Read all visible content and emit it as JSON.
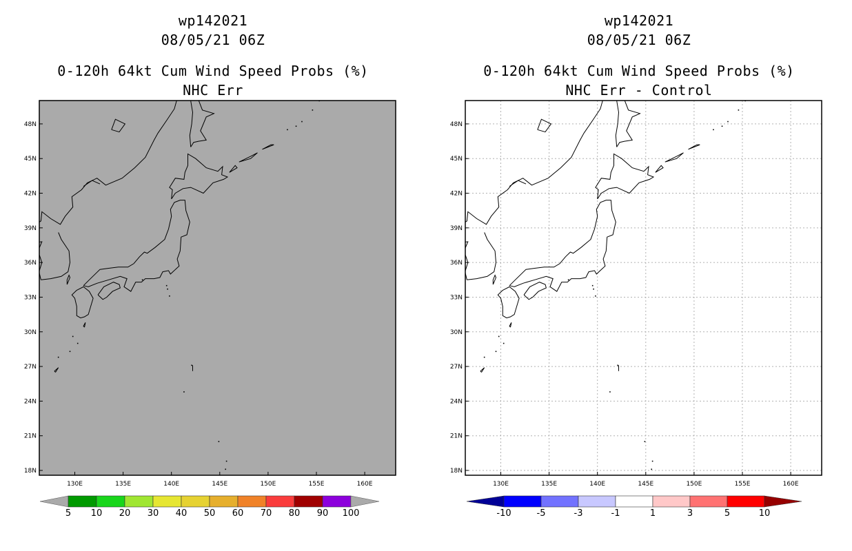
{
  "left_panel": {
    "storm_id": "wp142021",
    "datetime": "08/05/21 06Z",
    "product": "0-120h 64kt Cum Wind Speed Probs (%)",
    "subtitle": "NHC Err",
    "background_color": "#aaaaaa",
    "colorbar": {
      "colors": [
        "#009a00",
        "#19d61b",
        "#a0e632",
        "#e6e632",
        "#e6d232",
        "#e6af2d",
        "#f08228",
        "#fa3c3c",
        "#a00000",
        "#8c00dc"
      ],
      "end_color": "#aaaaaa",
      "labels": [
        "5",
        "10",
        "20",
        "30",
        "40",
        "50",
        "60",
        "70",
        "80",
        "90",
        "100"
      ]
    }
  },
  "right_panel": {
    "storm_id": "wp142021",
    "datetime": "08/05/21 06Z",
    "product": "0-120h 64kt Cum Wind Speed Probs (%)",
    "subtitle": "NHC Err - Control",
    "background_color": "#ffffff",
    "colorbar": {
      "colors": [
        "#0000ff",
        "#7272ff",
        "#c8c8ff",
        "#ffffff",
        "#ffc8c8",
        "#ff7272",
        "#ff0000"
      ],
      "low_end_color": "#000096",
      "high_end_color": "#960000",
      "labels": [
        "-10",
        "-5",
        "-3",
        "-1",
        "1",
        "3",
        "5",
        "10"
      ]
    }
  },
  "map": {
    "lat_labels": [
      "48N",
      "45N",
      "42N",
      "39N",
      "36N",
      "33N",
      "30N",
      "27N",
      "24N",
      "21N",
      "18N"
    ],
    "lon_labels": [
      "130E",
      "135E",
      "140E",
      "145E",
      "150E",
      "155E",
      "160E"
    ]
  }
}
